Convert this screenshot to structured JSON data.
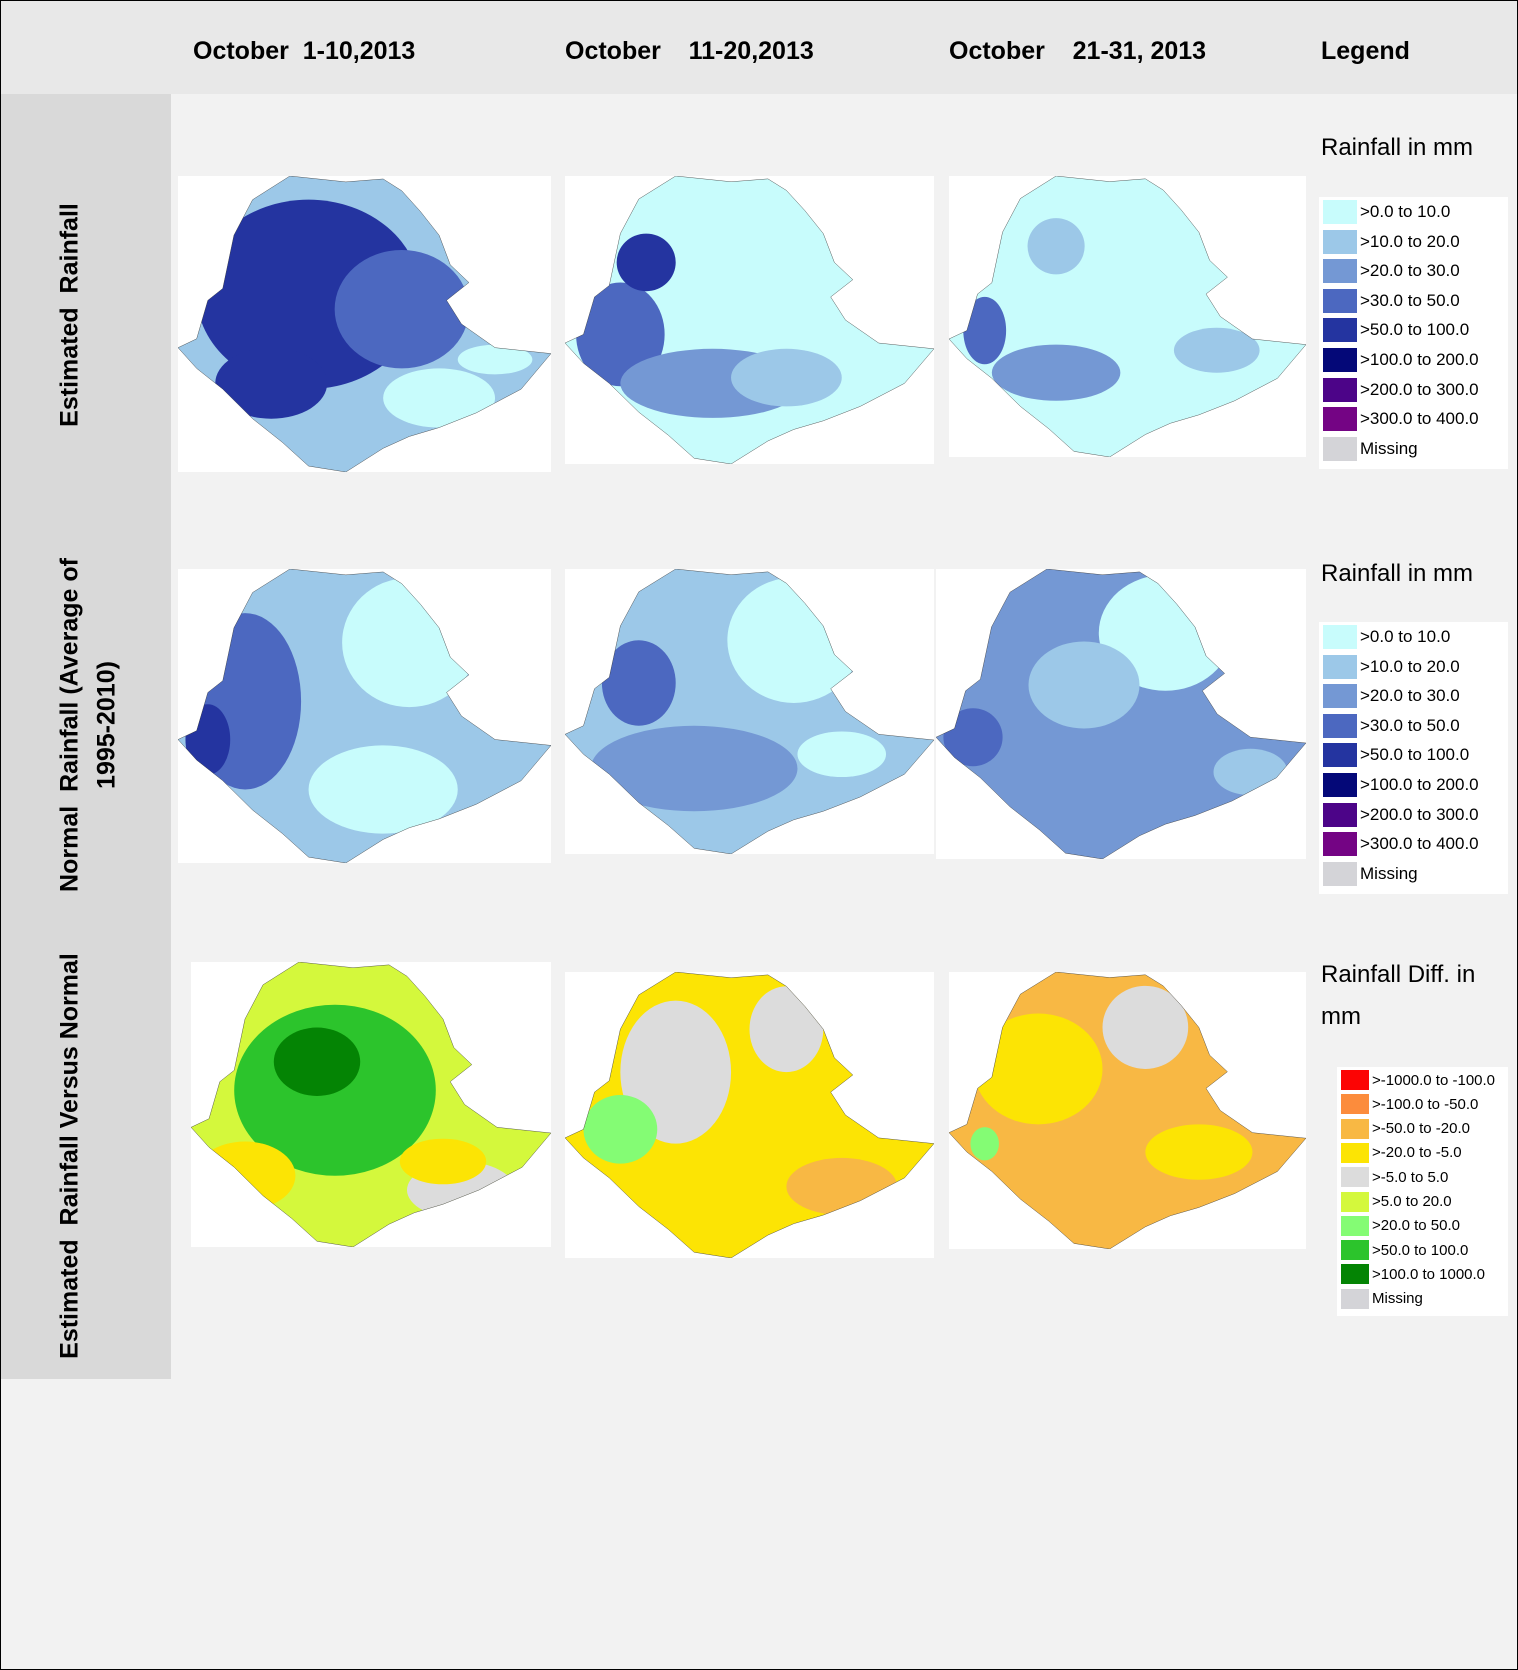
{
  "header": {
    "columns": [
      "October  1-10,2013",
      "October    11-20,2013",
      "October    21-31, 2013",
      "Legend"
    ]
  },
  "rows": [
    {
      "label_lines": [
        "Estimated  Rainfall"
      ]
    },
    {
      "label_lines": [
        "Normal  Rainfall (Average of",
        "1995-2010)"
      ]
    },
    {
      "label_lines": [
        "Estimated  Rainfall Versus Normal"
      ]
    }
  ],
  "legends": [
    {
      "title": "Rainfall in mm",
      "items": [
        {
          "label": ">0.0 to 10.0",
          "color": "#c8fcfc"
        },
        {
          "label": ">10.0 to 20.0",
          "color": "#9cc8e8"
        },
        {
          "label": ">20.0 to 30.0",
          "color": "#7498d4"
        },
        {
          "label": ">30.0 to 50.0",
          "color": "#4c68c0"
        },
        {
          "label": ">50.0 to 100.0",
          "color": "#2434a0"
        },
        {
          "label": ">100.0 to 200.0",
          "color": "#040878"
        },
        {
          "label": ">200.0 to 300.0",
          "color": "#4c0488"
        },
        {
          "label": ">300.0 to 400.0",
          "color": "#740484"
        },
        {
          "label": "Missing",
          "color": "#d4d4d8"
        }
      ]
    },
    {
      "title": "Rainfall in mm",
      "items": [
        {
          "label": ">0.0 to 10.0",
          "color": "#c8fcfc"
        },
        {
          "label": ">10.0 to 20.0",
          "color": "#9cc8e8"
        },
        {
          "label": ">20.0 to 30.0",
          "color": "#7498d4"
        },
        {
          "label": ">30.0 to 50.0",
          "color": "#4c68c0"
        },
        {
          "label": ">50.0 to 100.0",
          "color": "#2434a0"
        },
        {
          "label": ">100.0 to 200.0",
          "color": "#040878"
        },
        {
          "label": ">200.0 to 300.0",
          "color": "#4c0488"
        },
        {
          "label": ">300.0 to 400.0",
          "color": "#740484"
        },
        {
          "label": "Missing",
          "color": "#d4d4d8"
        }
      ]
    },
    {
      "title": "Rainfall Diff. in mm",
      "items": [
        {
          "label": ">-1000.0 to -100.0",
          "color": "#fc0404"
        },
        {
          "label": ">-100.0 to -50.0",
          "color": "#fc8c3c"
        },
        {
          "label": ">-50.0 to -20.0",
          "color": "#f8b844"
        },
        {
          "label": ">-20.0 to -5.0",
          "color": "#fce404"
        },
        {
          "label": ">-5.0 to 5.0",
          "color": "#dcdcdc"
        },
        {
          "label": ">5.0 to 20.0",
          "color": "#d4f83c"
        },
        {
          "label": ">20.0 to 50.0",
          "color": "#84fc74"
        },
        {
          "label": ">50.0 to 100.0",
          "color": "#2cc42c"
        },
        {
          "label": ">100.0 to 1000.0",
          "color": "#048404"
        },
        {
          "label": "Missing",
          "color": "#d4d4d8"
        }
      ]
    }
  ]
}
